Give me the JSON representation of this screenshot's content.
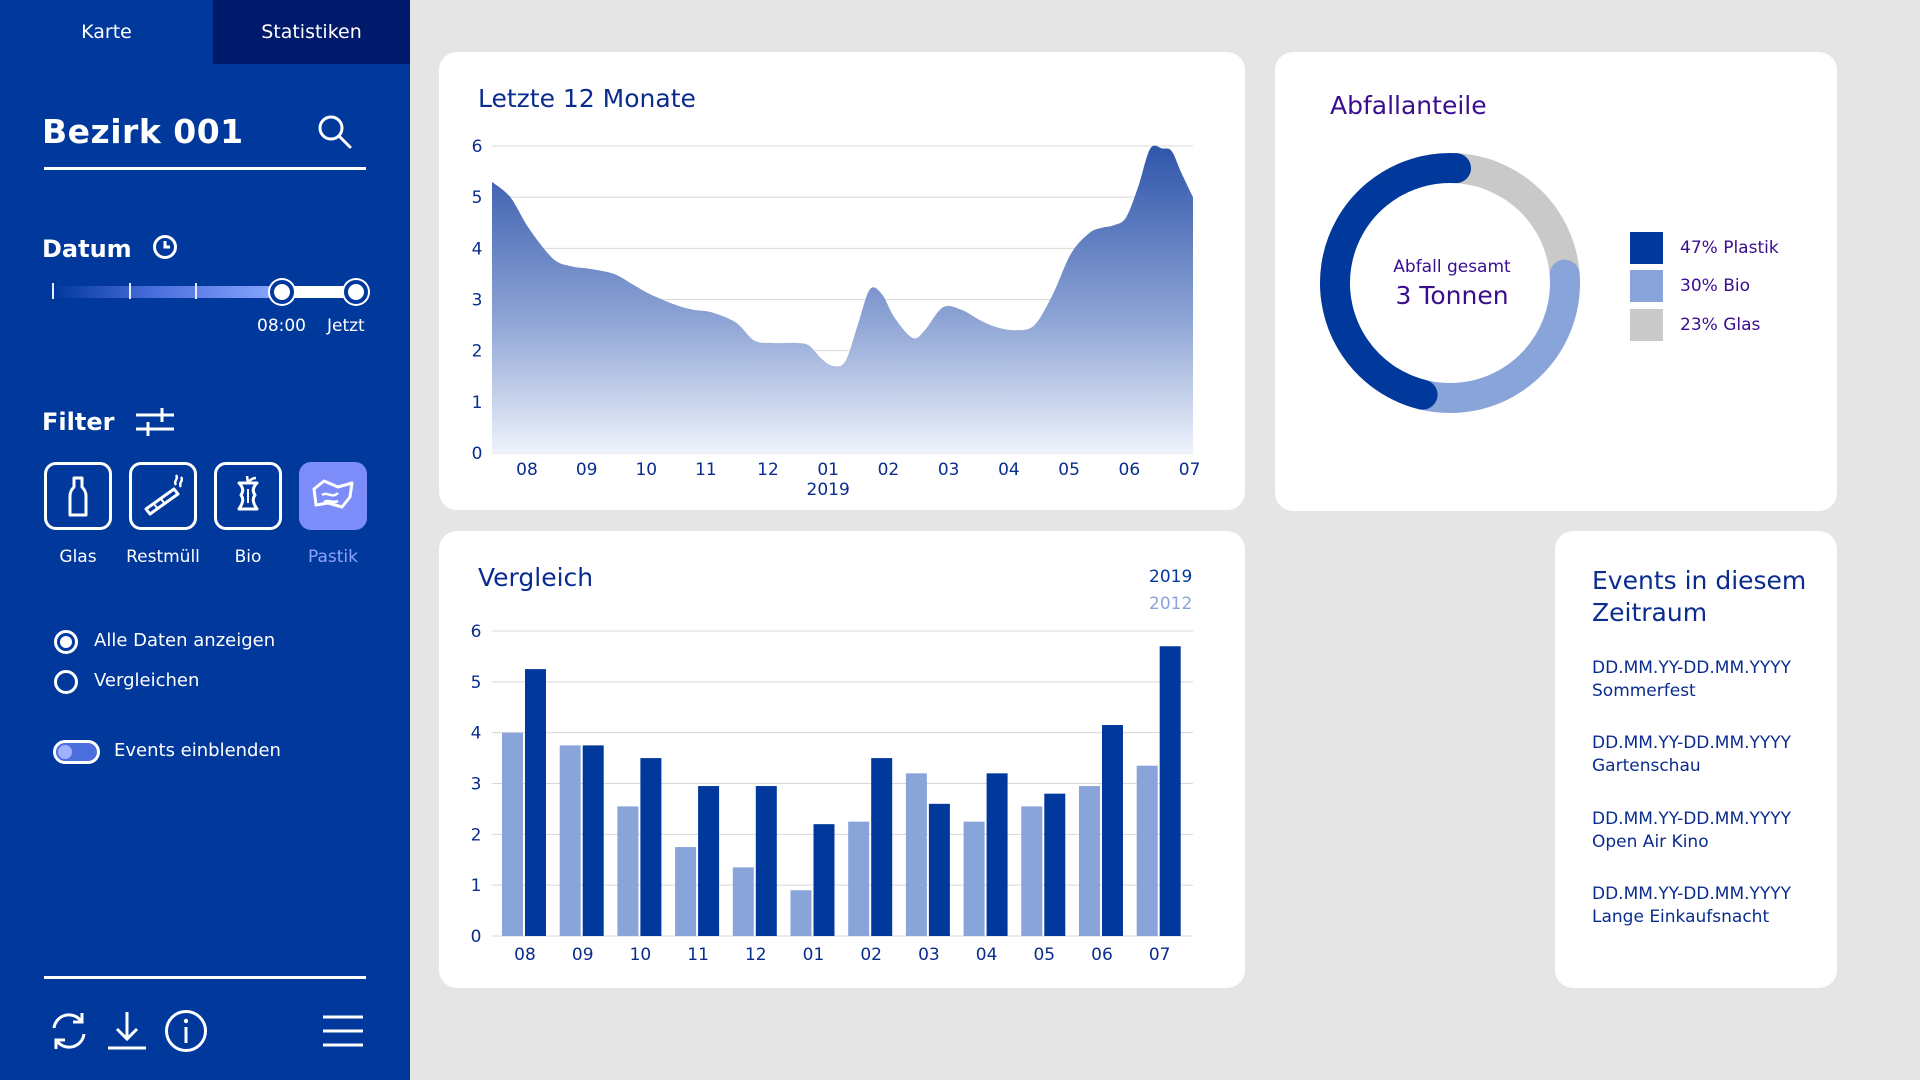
{
  "sidebar": {
    "tabs": [
      {
        "label": "Karte"
      },
      {
        "label": "Statistiken"
      }
    ],
    "district": "Bezirk 001",
    "date_title": "Datum",
    "slider": {
      "start_label": "08:00",
      "end_label": "Jetzt"
    },
    "filter_title": "Filter",
    "filters": [
      {
        "label": "Glas",
        "icon": "bottle-icon",
        "active": false
      },
      {
        "label": "Restmüll",
        "icon": "cigarette-icon",
        "active": false
      },
      {
        "label": "Bio",
        "icon": "apple-core-icon",
        "active": false
      },
      {
        "label": "Pastik",
        "icon": "plastic-wrapper-icon",
        "active": true
      }
    ],
    "radio_options": [
      {
        "label": "Alle Daten anzeigen",
        "checked": true
      },
      {
        "label": "Vergleichen",
        "checked": false
      }
    ],
    "toggle": {
      "label": "Events einblenden",
      "on": true
    },
    "toolbar": [
      "refresh-icon",
      "download-icon",
      "info-icon",
      "menu-icon"
    ]
  },
  "colors": {
    "sidebar": "#00389c",
    "tab_active": "#001a6b",
    "primary": "#00389c",
    "secondary": "#89a4d8",
    "glass": "#c9c9c9",
    "accent": "#7c8cf8",
    "text_dark": "#0a2c8f"
  },
  "area_chart": {
    "title": "Letzte 12 Monate",
    "year_label": "2019",
    "chart_data": {
      "type": "area",
      "title": "Letzte 12 Monate",
      "categories": [
        "08",
        "09",
        "10",
        "11",
        "12",
        "01",
        "02",
        "03",
        "04",
        "05",
        "06",
        "07"
      ],
      "x": [
        0,
        0.3,
        0.6,
        1.0,
        1.3,
        1.6,
        2.0,
        2.3,
        2.6,
        3.0,
        3.3,
        3.6,
        4.0,
        4.3,
        4.6,
        5.0,
        5.2,
        5.4,
        5.6,
        5.8,
        6.0,
        6.2,
        6.4,
        6.6,
        6.9,
        7.1,
        7.4,
        7.7,
        8.0,
        8.3,
        8.6,
        8.9,
        9.2,
        9.5,
        9.8,
        10.0,
        10.2,
        10.4,
        10.6,
        10.8,
        11.0,
        11.15,
        11.3,
        11.5
      ],
      "y": [
        5.3,
        5.0,
        4.4,
        3.8,
        3.65,
        3.6,
        3.5,
        3.3,
        3.1,
        2.9,
        2.8,
        2.75,
        2.55,
        2.2,
        2.15,
        2.15,
        2.1,
        1.85,
        1.7,
        1.8,
        2.5,
        3.2,
        3.1,
        2.65,
        2.25,
        2.4,
        2.85,
        2.8,
        2.6,
        2.45,
        2.4,
        2.5,
        3.1,
        3.9,
        4.3,
        4.4,
        4.45,
        4.6,
        5.2,
        5.95,
        5.95,
        5.9,
        5.5,
        5.0
      ],
      "ylim": [
        0,
        6
      ],
      "yticks": [
        0,
        1,
        2,
        3,
        4,
        5,
        6
      ],
      "grid": true,
      "xlabel": "",
      "ylabel": ""
    }
  },
  "bar_chart": {
    "title": "Vergleich",
    "legend": [
      {
        "label": "2019"
      },
      {
        "label": "2012"
      }
    ],
    "chart_data": {
      "type": "bar",
      "title": "Vergleich",
      "categories": [
        "08",
        "09",
        "10",
        "11",
        "12",
        "01",
        "02",
        "03",
        "04",
        "05",
        "06",
        "07"
      ],
      "series": [
        {
          "name": "2012",
          "values": [
            4.0,
            3.75,
            2.55,
            1.75,
            1.35,
            0.9,
            2.25,
            3.2,
            2.25,
            2.55,
            2.95,
            3.35
          ]
        },
        {
          "name": "2019",
          "values": [
            5.25,
            3.75,
            3.5,
            2.95,
            2.95,
            2.2,
            3.5,
            2.6,
            3.2,
            2.8,
            4.15,
            5.7
          ]
        }
      ],
      "ylim": [
        0,
        6
      ],
      "yticks": [
        0,
        1,
        2,
        3,
        4,
        5,
        6
      ],
      "grid": true,
      "legend": "top-right",
      "xlabel": "",
      "ylabel": ""
    }
  },
  "donut": {
    "title": "Abfallanteile",
    "center_label": "Abfall gesamt",
    "center_value": "3 Tonnen",
    "chart_data": {
      "type": "pie",
      "title": "Abfallanteile",
      "labels": [
        "Plastik",
        "Bio",
        "Glas"
      ],
      "values": [
        47,
        30,
        23
      ],
      "legend": "right"
    },
    "legend": [
      {
        "label": "47% Plastik",
        "color": "#00389c"
      },
      {
        "label": "30% Bio",
        "color": "#89a4d8"
      },
      {
        "label": "23% Glas",
        "color": "#c9c9c9"
      }
    ]
  },
  "events": {
    "title_line1": "Events in diesem",
    "title_line2": "Zeitraum",
    "items": [
      {
        "date": "DD.MM.YY-DD.MM.YYYY",
        "name": "Sommerfest"
      },
      {
        "date": "DD.MM.YY-DD.MM.YYYY",
        "name": "Gartenschau"
      },
      {
        "date": "DD.MM.YY-DD.MM.YYYY",
        "name": "Open Air Kino"
      },
      {
        "date": "DD.MM.YY-DD.MM.YYYY",
        "name": "Lange Einkaufsnacht"
      }
    ]
  }
}
